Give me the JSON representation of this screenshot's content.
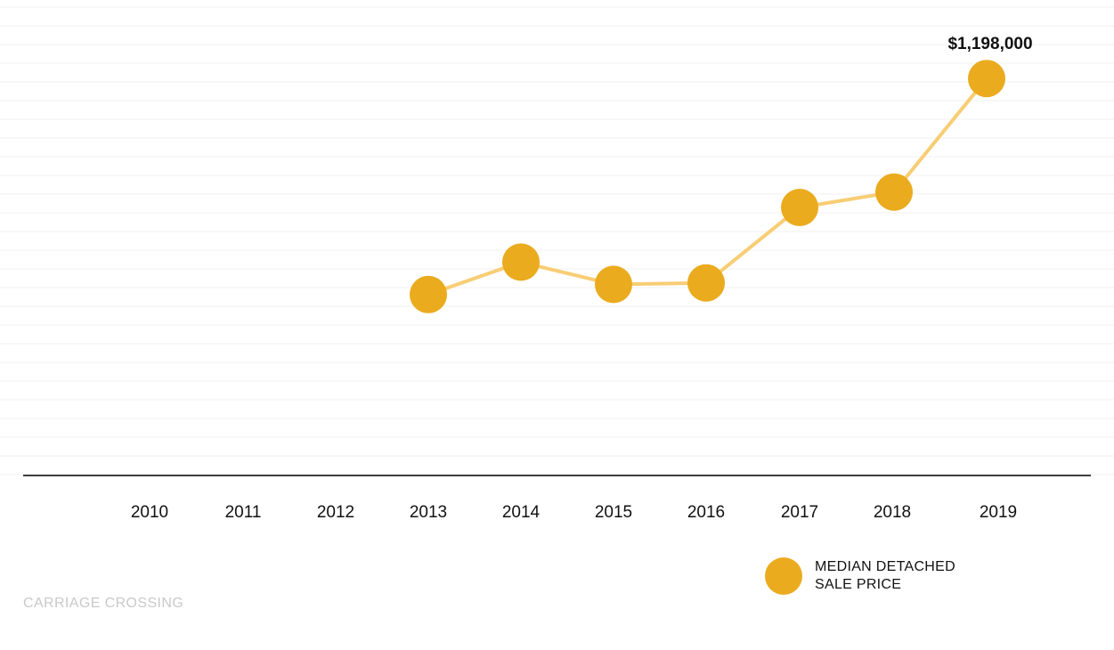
{
  "chart_data": {
    "type": "line",
    "categories": [
      "2010",
      "2011",
      "2012",
      "2013",
      "2014",
      "2015",
      "2016",
      "2017",
      "2018",
      "2019"
    ],
    "series": [
      {
        "name": "MEDIAN DETACHED SALE PRICE",
        "values": [
          null,
          null,
          null,
          791000,
          852000,
          810000,
          813000,
          955000,
          984000,
          1198000
        ],
        "color": "#eaab1e",
        "line_color": "#f8cd74"
      }
    ],
    "data_labels": [
      {
        "category": "2019",
        "text": "$1,198,000"
      }
    ],
    "ylim": [
      450000,
      1200000
    ],
    "grid": true,
    "legend": {
      "position": "bottom-right",
      "lines": [
        "MEDIAN DETACHED",
        "SALE PRICE"
      ]
    }
  },
  "footer": {
    "source": "CARRIAGE CROSSING"
  }
}
